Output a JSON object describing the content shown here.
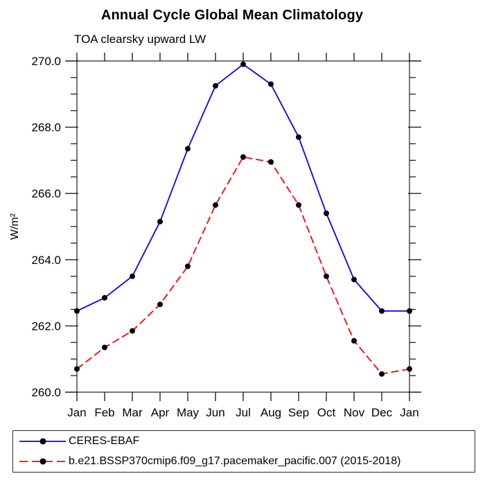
{
  "title": "Annual Cycle Global Mean Climatology",
  "subtitle": "TOA clearsky upward LW",
  "chart_data": {
    "type": "line",
    "x_categories": [
      "Jan",
      "Feb",
      "Mar",
      "Apr",
      "May",
      "Jun",
      "Jul",
      "Aug",
      "Sep",
      "Oct",
      "Nov",
      "Dec",
      "Jan"
    ],
    "ylabel": "W/m²",
    "ylim": [
      260.0,
      270.0
    ],
    "ytick_values": [
      260,
      262,
      264,
      266,
      268,
      270
    ],
    "ytick_labels": [
      "260.0",
      "262.0",
      "264.0",
      "266.0",
      "268.0",
      "270.0"
    ],
    "ytick_minor_step": 0.5,
    "grid": false,
    "legend_position": "bottom",
    "axis_color": "#555555",
    "tick_color": "#1f1f1f",
    "series": [
      {
        "name": "CERES-EBAF",
        "color": "#0000ff",
        "style": "solid",
        "marker": "circle",
        "marker_color": "#000000",
        "values": [
          262.45,
          262.85,
          263.5,
          265.15,
          267.35,
          269.25,
          269.9,
          269.3,
          267.7,
          265.4,
          263.4,
          262.45,
          262.45
        ]
      },
      {
        "name": "b.e21.BSSP370cmip6.f09_g17.pacemaker_pacific.007 (2015-2018)",
        "color": "#ff0000",
        "style": "dashed",
        "marker": "circle",
        "marker_color": "#000000",
        "values": [
          260.7,
          261.35,
          261.85,
          262.65,
          263.8,
          265.65,
          267.1,
          266.95,
          265.65,
          263.5,
          261.55,
          260.55,
          260.7
        ]
      }
    ]
  }
}
